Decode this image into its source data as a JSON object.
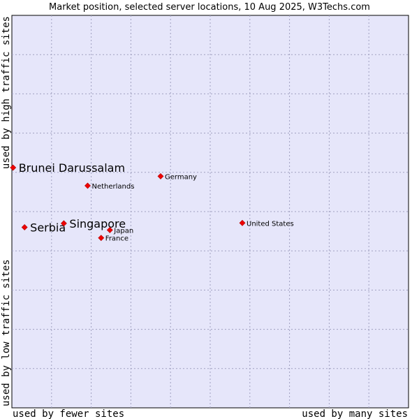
{
  "chart_data": {
    "type": "scatter",
    "title": "Market position, selected server locations, 10 Aug 2025, W3Techs.com",
    "xlabel_left": "used by fewer sites",
    "xlabel_right": "used by many sites",
    "ylabel_top": "used by high traffic sites",
    "ylabel_bottom": "used by low traffic sites",
    "xlim": [
      0,
      100
    ],
    "ylim": [
      0,
      100
    ],
    "grid": true,
    "plot_bg": "#e6e6fa",
    "grid_color": "#a0a0c0",
    "point_color": "#ee0000",
    "points": [
      {
        "name": "Brunei Darussalam",
        "x": 0.3,
        "y": 61.2,
        "highlight": true
      },
      {
        "name": "Serbia",
        "x": 3.2,
        "y": 46.0,
        "highlight": true
      },
      {
        "name": "Singapore",
        "x": 13.1,
        "y": 47.0,
        "highlight": true
      },
      {
        "name": "Netherlands",
        "x": 19.1,
        "y": 56.6,
        "highlight": false
      },
      {
        "name": "Germany",
        "x": 37.5,
        "y": 59.0,
        "highlight": false
      },
      {
        "name": "Japan",
        "x": 24.7,
        "y": 45.3,
        "highlight": false
      },
      {
        "name": "France",
        "x": 22.5,
        "y": 43.3,
        "highlight": false
      },
      {
        "name": "United States",
        "x": 58.1,
        "y": 47.1,
        "highlight": false
      }
    ]
  }
}
